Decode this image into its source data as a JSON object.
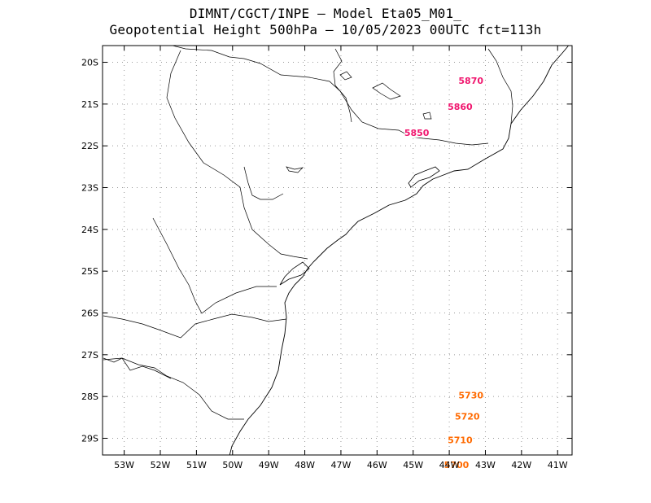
{
  "title": {
    "line1": "DIMNT/CGCT/INPE –  Model Eta05_M01_",
    "line2": "Geopotential Height 500hPa –  10/05/2023 00UTC fct=113h"
  },
  "axes": {
    "lat_labels": [
      "20S",
      "21S",
      "22S",
      "23S",
      "24S",
      "25S",
      "26S",
      "27S",
      "28S",
      "29S"
    ],
    "lon_labels": [
      "53W",
      "52W",
      "51W",
      "50W",
      "49W",
      "48W",
      "47W",
      "46W",
      "45W",
      "44W",
      "43W",
      "42W",
      "41W"
    ]
  },
  "chart_data": {
    "type": "contour",
    "field": "Geopotential Height 500hPa",
    "lon_range": [
      -53.6,
      -40.6
    ],
    "lat_range": [
      -29.4,
      -19.6
    ],
    "contour_interval": 10,
    "levels": [
      5700,
      5710,
      5720,
      5730,
      5740,
      5750,
      5760,
      5770,
      5780,
      5790,
      5800,
      5810,
      5820,
      5830,
      5840,
      5850,
      5860,
      5870,
      5880
    ],
    "labeled_levels": [
      "5870",
      "5860",
      "5850",
      "5730",
      "5720",
      "5710",
      "5700"
    ],
    "colors": {
      "low": "#ff6a00",
      "mid": "#e8201f",
      "high": "#f0166e",
      "coast": "#000000",
      "grid": "#9a9a9a"
    }
  }
}
